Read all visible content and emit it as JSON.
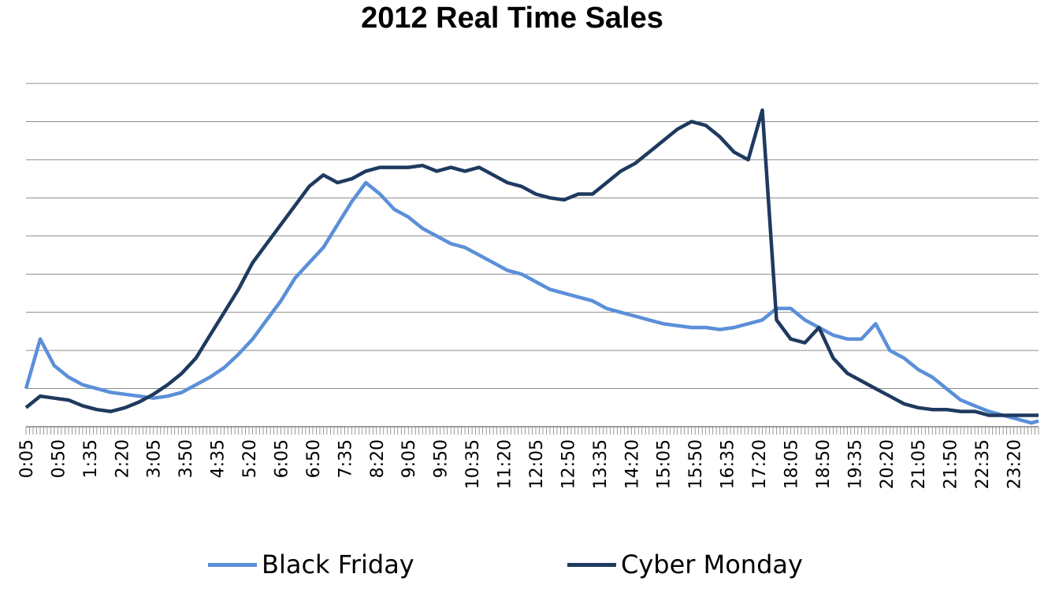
{
  "chart_data": {
    "type": "line",
    "title": "2012 Real Time Sales",
    "xlabel": "",
    "ylabel": "",
    "ylim": [
      0,
      9
    ],
    "y_gridlines": 9,
    "y_tick_labels_shown": false,
    "grid": true,
    "legend_position": "bottom",
    "x_tick_labels": [
      "0:05",
      "0:50",
      "1:35",
      "2:20",
      "3:05",
      "3:50",
      "4:35",
      "5:20",
      "6:05",
      "6:50",
      "7:35",
      "8:20",
      "9:05",
      "9:50",
      "10:35",
      "11:20",
      "12:05",
      "12:50",
      "13:35",
      "14:20",
      "15:05",
      "15:50",
      "16:35",
      "17:20",
      "18:05",
      "18:50",
      "19:35",
      "20:20",
      "21:05",
      "21:50",
      "22:35",
      "23:20"
    ],
    "x_minutes": [
      5,
      25,
      45,
      65,
      85,
      105,
      125,
      145,
      165,
      185,
      205,
      225,
      245,
      265,
      285,
      305,
      325,
      345,
      365,
      385,
      405,
      425,
      445,
      465,
      485,
      505,
      525,
      545,
      565,
      585,
      605,
      625,
      645,
      665,
      685,
      705,
      725,
      745,
      765,
      785,
      805,
      825,
      845,
      865,
      885,
      905,
      925,
      945,
      965,
      985,
      1005,
      1025,
      1045,
      1065,
      1085,
      1105,
      1125,
      1145,
      1165,
      1185,
      1205,
      1225,
      1245,
      1265,
      1285,
      1305,
      1325,
      1345,
      1365,
      1385,
      1405,
      1425,
      1435
    ],
    "series": [
      {
        "name": "Black Friday",
        "color": "#5B8FD9",
        "values": [
          1.0,
          2.3,
          1.6,
          1.3,
          1.1,
          1.0,
          0.9,
          0.85,
          0.8,
          0.75,
          0.8,
          0.9,
          1.1,
          1.3,
          1.55,
          1.9,
          2.3,
          2.8,
          3.3,
          3.9,
          4.3,
          4.7,
          5.3,
          5.9,
          6.4,
          6.1,
          5.7,
          5.5,
          5.2,
          5.0,
          4.8,
          4.7,
          4.5,
          4.3,
          4.1,
          4.0,
          3.8,
          3.6,
          3.5,
          3.4,
          3.3,
          3.1,
          3.0,
          2.9,
          2.8,
          2.7,
          2.65,
          2.6,
          2.6,
          2.55,
          2.6,
          2.7,
          2.8,
          3.1,
          3.1,
          2.8,
          2.6,
          2.4,
          2.3,
          2.3,
          2.7,
          2.0,
          1.8,
          1.5,
          1.3,
          1.0,
          0.7,
          0.55,
          0.4,
          0.3,
          0.2,
          0.1,
          0.15
        ]
      },
      {
        "name": "Cyber Monday",
        "color": "#1F3A5F",
        "values": [
          0.5,
          0.8,
          0.75,
          0.7,
          0.55,
          0.45,
          0.4,
          0.5,
          0.65,
          0.85,
          1.1,
          1.4,
          1.8,
          2.4,
          3.0,
          3.6,
          4.3,
          4.8,
          5.3,
          5.8,
          6.3,
          6.6,
          6.4,
          6.5,
          6.7,
          6.8,
          6.8,
          6.8,
          6.85,
          6.7,
          6.8,
          6.7,
          6.8,
          6.6,
          6.4,
          6.3,
          6.1,
          6.0,
          5.95,
          6.1,
          6.1,
          6.4,
          6.7,
          6.9,
          7.2,
          7.5,
          7.8,
          8.0,
          7.9,
          7.6,
          7.2,
          7.0,
          8.3,
          2.8,
          2.3,
          2.2,
          2.6,
          1.8,
          1.4,
          1.2,
          1.0,
          0.8,
          0.6,
          0.5,
          0.45,
          0.45,
          0.4,
          0.4,
          0.3,
          0.3,
          0.3,
          0.3,
          0.3
        ]
      }
    ]
  }
}
